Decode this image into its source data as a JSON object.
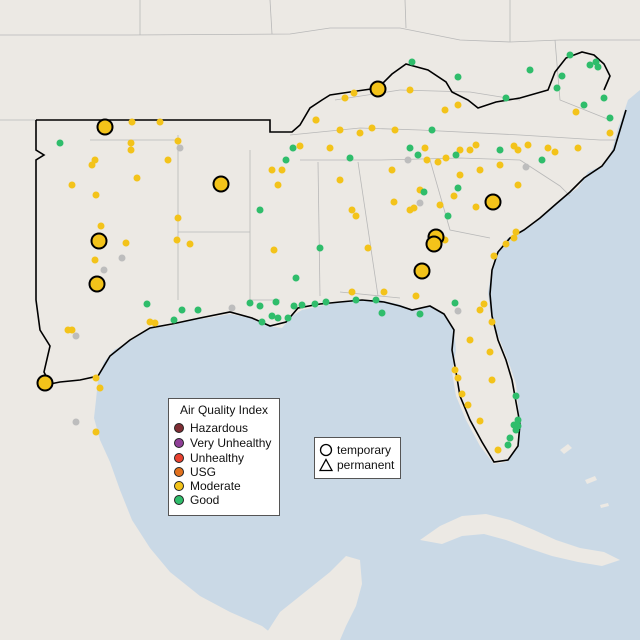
{
  "legend": {
    "title": "Air Quality Index",
    "categories": [
      {
        "label": "Hazardous",
        "color": "#7e2d33"
      },
      {
        "label": "Very Unhealthy",
        "color": "#8f3f97"
      },
      {
        "label": "Unhealthy",
        "color": "#e8412f"
      },
      {
        "label": "USG",
        "color": "#e2711d"
      },
      {
        "label": "Moderate",
        "color": "#f3c31a"
      },
      {
        "label": "Good",
        "color": "#2fbd6b"
      }
    ],
    "types": [
      {
        "label": "temporary",
        "icon": "circle-icon"
      },
      {
        "label": "permanent",
        "icon": "triangle-icon"
      }
    ]
  },
  "colors": {
    "water": "#cad9e6",
    "land": "#ece9e4",
    "borders": "#b8b8b8",
    "outline": "#000000",
    "missing": "#bdbdbd"
  }
}
